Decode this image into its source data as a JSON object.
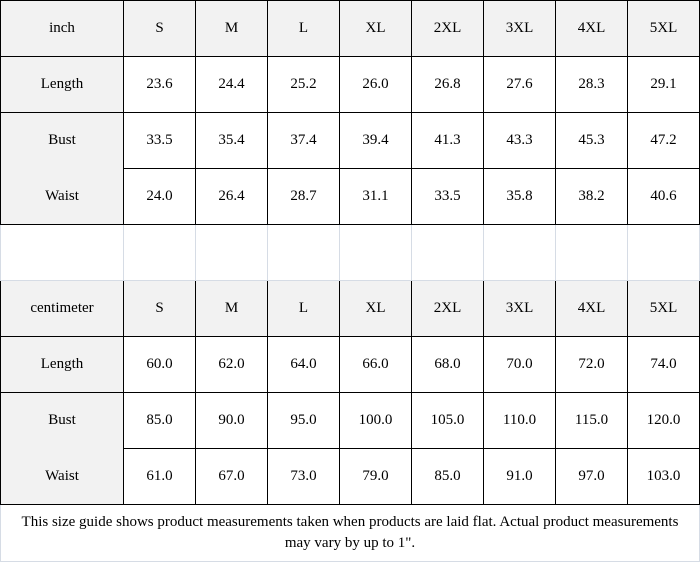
{
  "tables": [
    {
      "unit": "inch",
      "sizes": [
        "S",
        "M",
        "L",
        "XL",
        "2XL",
        "3XL",
        "4XL",
        "5XL"
      ],
      "rows": [
        {
          "label": "Length",
          "values": [
            "23.6",
            "24.4",
            "25.2",
            "26.0",
            "26.8",
            "27.6",
            "28.3",
            "29.1"
          ]
        },
        {
          "label": "Bust",
          "values": [
            "33.5",
            "35.4",
            "37.4",
            "39.4",
            "41.3",
            "43.3",
            "45.3",
            "47.2"
          ]
        },
        {
          "label": "Waist",
          "values": [
            "24.0",
            "26.4",
            "28.7",
            "31.1",
            "33.5",
            "35.8",
            "38.2",
            "40.6"
          ]
        }
      ]
    },
    {
      "unit": "centimeter",
      "sizes": [
        "S",
        "M",
        "L",
        "XL",
        "2XL",
        "3XL",
        "4XL",
        "5XL"
      ],
      "rows": [
        {
          "label": "Length",
          "values": [
            "60.0",
            "62.0",
            "64.0",
            "66.0",
            "68.0",
            "70.0",
            "72.0",
            "74.0"
          ]
        },
        {
          "label": "Bust",
          "values": [
            "85.0",
            "90.0",
            "95.0",
            "100.0",
            "105.0",
            "110.0",
            "115.0",
            "120.0"
          ]
        },
        {
          "label": "Waist",
          "values": [
            "61.0",
            "67.0",
            "73.0",
            "79.0",
            "85.0",
            "91.0",
            "97.0",
            "103.0"
          ]
        }
      ]
    }
  ],
  "note": "This size guide shows product measurements taken when products are laid flat. Actual product measurements may vary by up to 1\"."
}
